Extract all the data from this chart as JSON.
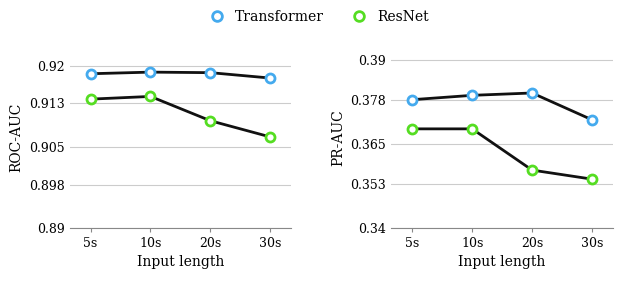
{
  "x_labels": [
    "5s",
    "10s",
    "20s",
    "30s"
  ],
  "x_values": [
    0,
    1,
    2,
    3
  ],
  "roc_transformer": [
    0.9185,
    0.9188,
    0.9187,
    0.9177
  ],
  "roc_resnet": [
    0.9138,
    0.9143,
    0.9098,
    0.9068
  ],
  "roc_ylim": [
    0.89,
    0.9235
  ],
  "roc_yticks": [
    0.89,
    0.898,
    0.905,
    0.913,
    0.92
  ],
  "roc_ylabel": "ROC-AUC",
  "pr_transformer": [
    0.3782,
    0.3795,
    0.3802,
    0.3722
  ],
  "pr_resnet": [
    0.3695,
    0.3695,
    0.3572,
    0.3545
  ],
  "pr_ylim": [
    0.34,
    0.394
  ],
  "pr_yticks": [
    0.34,
    0.353,
    0.365,
    0.378,
    0.39
  ],
  "pr_ylabel": "PR-AUC",
  "transformer_color": "#44AAEE",
  "resnet_color": "#55DD22",
  "line_color": "#111111",
  "xlabel": "Input length",
  "legend_labels": [
    "Transformer",
    "ResNet"
  ],
  "marker_size": 6.5,
  "line_width": 2.0
}
